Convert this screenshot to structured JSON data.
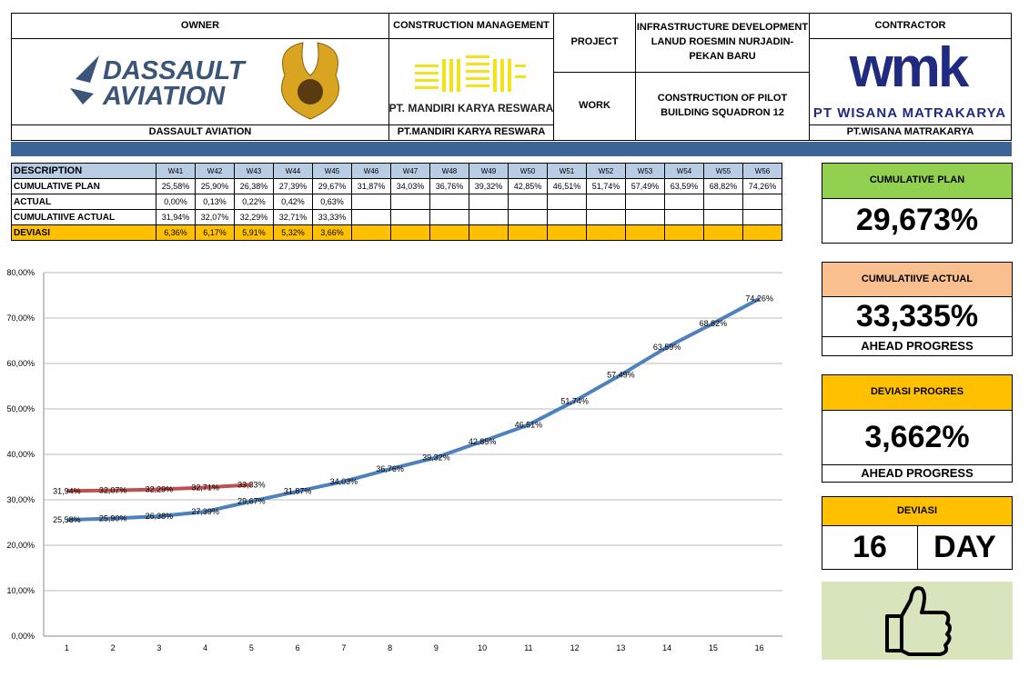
{
  "header": {
    "owner": {
      "title": "OWNER",
      "logo": [
        "DASSAULT",
        "AVIATION"
      ],
      "name": "DASSAULT AVIATION"
    },
    "construction_management": {
      "title": "CONSTRUCTION MANAGEMENT",
      "logo": "PT. MANDIRI KARYA RESWARA",
      "name": "PT.MANDIRI KARYA RESWARA"
    },
    "project": {
      "label": "PROJECT",
      "value": "INFRASTRUCTURE DEVELOPMENT LANUD ROESMIN NURJADIN-PEKAN BARU"
    },
    "work": {
      "label": "WORK",
      "value": "CONSTRUCTION OF PILOT BUILDING SQUADRON 12"
    },
    "contractor": {
      "title": "CONTRACTOR",
      "logo": "wmk",
      "logo_name": "PT WISANA MATRAKARYA",
      "name": "PT.WISANA MATRAKARYA"
    }
  },
  "table": {
    "header": [
      "DESCRIPTION",
      "W41",
      "W42",
      "W43",
      "W44",
      "W45",
      "W46",
      "W47",
      "W48",
      "W49",
      "W50",
      "W51",
      "W52",
      "W53",
      "W54",
      "W55",
      "W56"
    ],
    "rows": [
      [
        "CUMULATIVE PLAN",
        "25,58%",
        "25,90%",
        "26,38%",
        "27,39%",
        "29,67%",
        "31,87%",
        "34,03%",
        "36,76%",
        "39,32%",
        "42,85%",
        "46,51%",
        "51,74%",
        "57,49%",
        "63,59%",
        "68,82%",
        "74,26%"
      ],
      [
        "ACTUAL",
        "0,00%",
        "0,13%",
        "0,22%",
        "0,42%",
        "0,63%"
      ],
      [
        "CUMULATIIVE ACTUAL",
        "31,94%",
        "32,07%",
        "32,29%",
        "32,71%",
        "33,33%"
      ],
      [
        "DEVIASI",
        "6,36%",
        "6,17%",
        "5,91%",
        "5,32%",
        "3,66%"
      ]
    ]
  },
  "summary": {
    "cumulative_plan": {
      "label": "CUMULATIVE PLAN",
      "value": "29,673%"
    },
    "cumulative_actual": {
      "label": "CUMULATIIVE ACTUAL",
      "value": "33,335%",
      "note": "AHEAD PROGRESS"
    },
    "deviasi_progres": {
      "label": "DEVIASI PROGRES",
      "value": "3,662%",
      "note": "AHEAD PROGRESS"
    },
    "deviasi": {
      "label": "DEVIASI",
      "value": "16",
      "unit": "DAY"
    }
  },
  "chart_data": {
    "type": "line",
    "categories": [
      1,
      2,
      3,
      4,
      5,
      6,
      7,
      8,
      9,
      10,
      11,
      12,
      13,
      14,
      15,
      16
    ],
    "ylim": [
      0,
      80
    ],
    "yticks": [
      {
        "value": 0,
        "label": "0,00%"
      },
      {
        "value": 10,
        "label": "10,00%"
      },
      {
        "value": 20,
        "label": "20,00%"
      },
      {
        "value": 30,
        "label": "30,00%"
      },
      {
        "value": 40,
        "label": "40,00%"
      },
      {
        "value": 50,
        "label": "50,00%"
      },
      {
        "value": 60,
        "label": "60,00%"
      },
      {
        "value": 70,
        "label": "70,00%"
      },
      {
        "value": 80,
        "label": "80,00%"
      }
    ],
    "grid": true,
    "series": [
      {
        "color": "#4f81bd",
        "values": [
          25.58,
          25.9,
          26.38,
          27.39,
          29.67,
          31.87,
          34.03,
          36.76,
          39.32,
          42.85,
          46.51,
          51.74,
          57.49,
          63.59,
          68.82,
          74.26
        ],
        "value_labels": [
          "25,58%",
          "25,90%",
          "26,38%",
          "27,39%",
          "29,67%",
          "31,87%",
          "34,03%",
          "36,76%",
          "39,32%",
          "42,85%",
          "46,51%",
          "51,74%",
          "57,49%",
          "63,59%",
          "68,82%",
          "74,26%"
        ]
      },
      {
        "color": "#c0504d",
        "values": [
          31.94,
          32.07,
          32.29,
          32.71,
          33.33,
          null,
          null,
          null,
          null,
          null,
          null,
          null,
          null,
          null,
          null,
          null
        ],
        "value_labels": [
          "31,94%",
          "32,07%",
          "32,29%",
          "32,71%",
          "33,33%",
          null,
          null,
          null,
          null,
          null,
          null,
          null,
          null,
          null,
          null,
          null
        ]
      }
    ]
  }
}
